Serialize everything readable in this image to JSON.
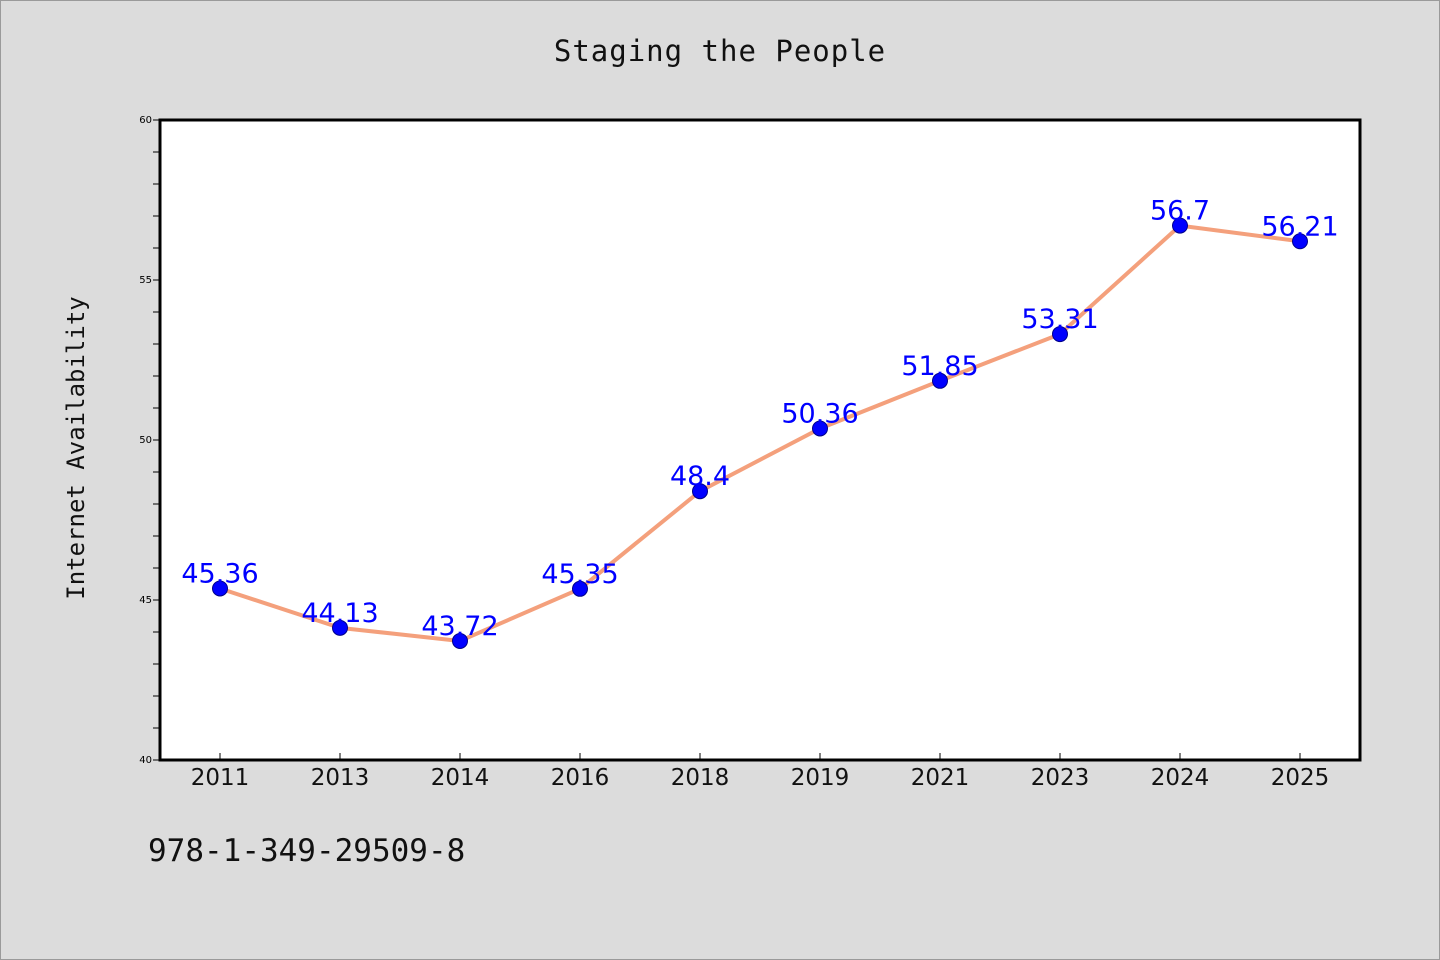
{
  "page": {
    "title": "Staging the People",
    "footer_code": "978-1-349-29509-8"
  },
  "chart_data": {
    "type": "line",
    "title": "Staging the People",
    "xlabel": "",
    "ylabel": "Internet Availability",
    "categories": [
      "2011",
      "2013",
      "2014",
      "2016",
      "2018",
      "2019",
      "2021",
      "2023",
      "2024",
      "2025"
    ],
    "series": [
      {
        "values": [
          45.36,
          44.13,
          43.72,
          45.35,
          48.4,
          50.36,
          51.85,
          53.31,
          56.7,
          56.21
        ],
        "labels": [
          "45.36",
          "44.13",
          "43.72",
          "45.35",
          "48.4",
          "50.36",
          "51.85",
          "53.31",
          "56.7",
          "56.21"
        ]
      }
    ],
    "ylim": [
      40,
      60
    ],
    "yticks": [
      "40",
      "45",
      "50",
      "55",
      "60"
    ],
    "grid": false,
    "legend": "none",
    "colors": {
      "line": "#f4a07c",
      "marker": "#0000ff",
      "label": "#0000ff",
      "plot_bg": "#ffffff",
      "page_bg": "#dcdcdc"
    }
  }
}
